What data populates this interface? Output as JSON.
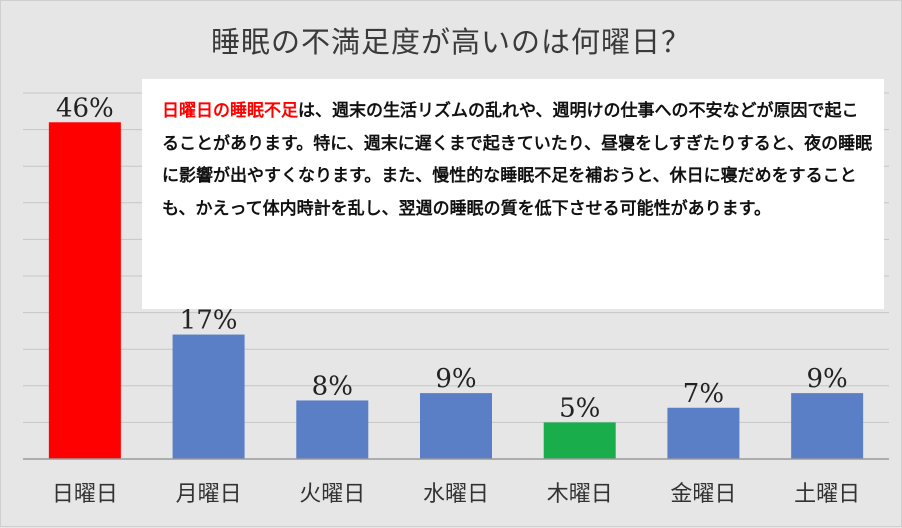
{
  "chart_data": {
    "type": "bar",
    "title": "睡眠の不満足度が高いのは何曜日？",
    "categories": [
      "日曜日",
      "月曜日",
      "火曜日",
      "水曜日",
      "木曜日",
      "金曜日",
      "土曜日"
    ],
    "values": [
      46,
      17,
      8,
      9,
      5,
      7,
      9
    ],
    "data_labels": [
      "46%",
      "17%",
      "8%",
      "9%",
      "5%",
      "7%",
      "9%"
    ],
    "colors": [
      "#ff0000",
      "#5b7fc7",
      "#5b7fc7",
      "#5b7fc7",
      "#1aad4b",
      "#5b7fc7",
      "#5b7fc7"
    ],
    "ylim": [
      0,
      50
    ],
    "grid": true,
    "annotation": {
      "highlight": "日曜日の睡眠不足",
      "text": "は、週末の生活リズムの乱れや、週明けの仕事への不安などが原因で起こることがあります。特に、週末に遅くまで起きていたり、昼寝をしすぎたりすると、夜の睡眠に影響が出やすくなります。また、慢性的な睡眠不足を補おうと、休日に寝だめをすることも、かえって体内時計を乱し、翌週の睡眠の質を低下させる可能性があります。"
    }
  }
}
